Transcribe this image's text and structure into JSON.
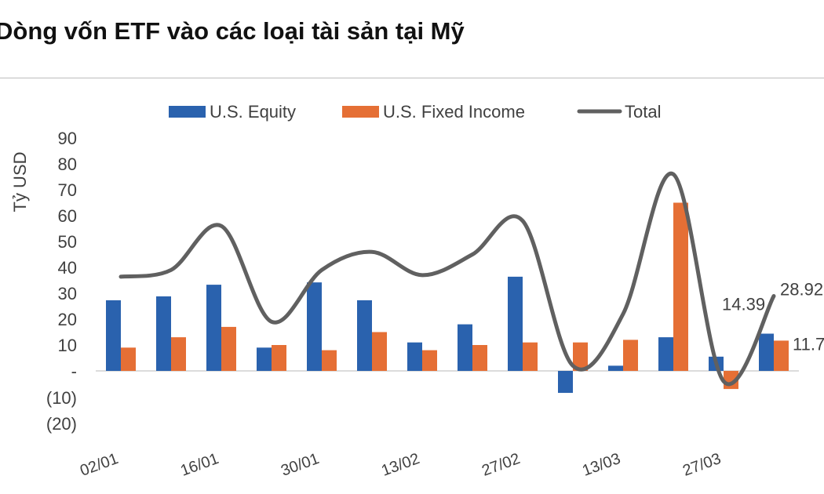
{
  "title": "Dòng vốn ETF vào các loại tài sản tại Mỹ",
  "chart_data": {
    "type": "bar",
    "title": "Dòng vốn ETF vào các loại tài sản tại Mỹ",
    "ylabel": "Tỷ USD",
    "xlabel": "",
    "ylim": [
      -20,
      90
    ],
    "yticks": [
      90,
      80,
      70,
      60,
      50,
      40,
      30,
      20,
      10,
      0,
      -10,
      -20
    ],
    "ytick_labels": [
      "90",
      "80",
      "70",
      "60",
      "50",
      "40",
      "30",
      "20",
      "10",
      "-",
      "(10)",
      "(20)"
    ],
    "xtick_labels": [
      "02/01",
      "",
      "16/01",
      "",
      "30/01",
      "",
      "13/02",
      "",
      "27/02",
      "",
      "13/03",
      "",
      "27/03",
      ""
    ],
    "grid": false,
    "legend_position": "top",
    "series": [
      {
        "name": "U.S. Equity",
        "type": "bar",
        "color": "#2a62ae",
        "values": [
          27.3,
          28.8,
          33.3,
          9,
          34.2,
          27.3,
          11,
          18,
          36.4,
          -8.5,
          2,
          13,
          5.5,
          14.39
        ]
      },
      {
        "name": "U.S. Fixed Income",
        "type": "bar",
        "color": "#e56f35",
        "values": [
          9,
          13,
          17,
          10,
          8,
          15,
          8,
          10,
          11,
          11,
          12,
          65,
          -7,
          11.7
        ]
      },
      {
        "name": "Total",
        "type": "line",
        "color": "#606060",
        "values": [
          36.4,
          39,
          56,
          19,
          39,
          46,
          37,
          45,
          58,
          2,
          22,
          76,
          -4,
          28.92
        ]
      }
    ],
    "data_labels": [
      {
        "series": "U.S. Equity",
        "index": 13,
        "text": "14.39"
      },
      {
        "series": "U.S. Fixed Income",
        "index": 13,
        "text": "11.7"
      },
      {
        "series": "Total",
        "index": 13,
        "text": "28.92"
      }
    ]
  }
}
